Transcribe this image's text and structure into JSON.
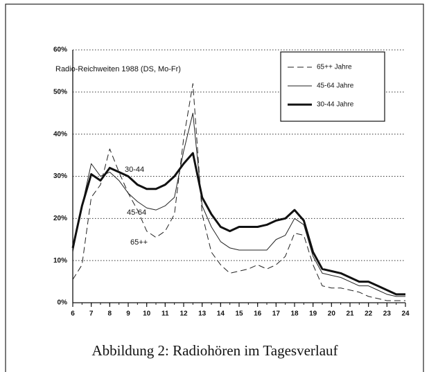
{
  "chart_data": {
    "type": "line",
    "title": "Radio-Reichweiten 1988 (DS, Mo-Fr)",
    "caption": "Abbildung 2:  Radiohören im Tagesverlauf",
    "annotations": [
      "30-44",
      "45-64",
      "65++"
    ],
    "x": [
      6,
      6.5,
      7,
      7.5,
      8,
      8.5,
      9,
      9.5,
      10,
      10.5,
      11,
      11.5,
      12,
      12.5,
      13,
      13.5,
      14,
      14.5,
      15,
      15.5,
      16,
      16.5,
      17,
      17.5,
      18,
      18.5,
      19,
      19.5,
      20,
      20.5,
      21,
      21.5,
      22,
      22.5,
      23,
      23.5,
      24
    ],
    "series": [
      {
        "name": "65++ Jahre",
        "color": "#222",
        "style": "dashed",
        "width": 1,
        "values": [
          5.5,
          9,
          25,
          28,
          36.5,
          31,
          26,
          22,
          17,
          15.5,
          17,
          21,
          39,
          52,
          21,
          12,
          9,
          7,
          7.5,
          8,
          9,
          8,
          9,
          11,
          16.5,
          16,
          9,
          4,
          3.5,
          3.5,
          3,
          2.5,
          1.5,
          1,
          0.5,
          0.5,
          0.5
        ]
      },
      {
        "name": "45-64 Jahre",
        "color": "#222",
        "style": "solid",
        "width": 1,
        "values": [
          12,
          23,
          33,
          30,
          31,
          29,
          26,
          24,
          22.5,
          22,
          23,
          25,
          36,
          45,
          23,
          18,
          14.5,
          13,
          12.5,
          12.5,
          12.5,
          12.5,
          15,
          16,
          20,
          18.5,
          11,
          7,
          6.5,
          6,
          5,
          4,
          4,
          3,
          2,
          1.5,
          1.5
        ]
      },
      {
        "name": "30-44 Jahre",
        "color": "#111",
        "style": "solid",
        "width": 3,
        "values": [
          13,
          23,
          30.5,
          29,
          32,
          31,
          30,
          28,
          27,
          27,
          28,
          30,
          33,
          35.5,
          25,
          21,
          18,
          17,
          18,
          18,
          18,
          18.5,
          19.5,
          20,
          22,
          19.5,
          12,
          8,
          7.5,
          7,
          6,
          5,
          5,
          4,
          3,
          2,
          2
        ]
      }
    ],
    "xlim": [
      6,
      24
    ],
    "xticks": [
      6,
      7,
      8,
      9,
      10,
      11,
      12,
      13,
      14,
      15,
      16,
      17,
      18,
      19,
      20,
      21,
      22,
      23,
      24
    ],
    "ylim": [
      0,
      60
    ],
    "yticks": [
      {
        "value": 0,
        "label": "0%"
      },
      {
        "value": 10,
        "label": "10%"
      },
      {
        "value": 20,
        "label": "20%"
      },
      {
        "value": 30,
        "label": "30%"
      },
      {
        "value": 40,
        "label": "40%"
      },
      {
        "value": 50,
        "label": "50%"
      },
      {
        "value": 60,
        "label": "60%"
      }
    ],
    "grid": true,
    "legend": "upper right"
  }
}
